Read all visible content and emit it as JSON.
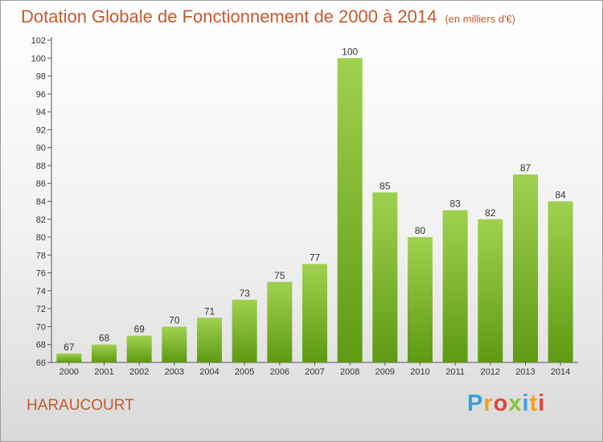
{
  "title": "Dotation Globale de Fonctionnement de 2000 à 2014",
  "unit": "(en milliers d'€)",
  "place": "HARAUCOURT",
  "logo": {
    "letters": [
      "P",
      "r",
      "o",
      "x",
      "i",
      "t",
      "i"
    ],
    "colors": [
      "#3aa0d8",
      "#f0a020",
      "#e0453a",
      "#8cc43c",
      "#3aa0d8",
      "#f0a020",
      "#e0453a"
    ]
  },
  "colors": {
    "bar_top": "#9fd14f",
    "bar_bottom": "#5e9a14",
    "title": "#c35a2d"
  },
  "chart_data": {
    "type": "bar",
    "categories": [
      "2000",
      "2001",
      "2002",
      "2003",
      "2004",
      "2005",
      "2006",
      "2007",
      "2008",
      "2009",
      "2010",
      "2011",
      "2012",
      "2013",
      "2014"
    ],
    "values": [
      67,
      68,
      69,
      70,
      71,
      73,
      75,
      77,
      100,
      85,
      80,
      83,
      82,
      87,
      84
    ],
    "ylim": [
      66,
      102
    ],
    "yticks": [
      66,
      68,
      70,
      72,
      74,
      76,
      78,
      80,
      82,
      84,
      86,
      88,
      90,
      92,
      94,
      96,
      98,
      100,
      102
    ],
    "grid": false,
    "legend": "none"
  }
}
